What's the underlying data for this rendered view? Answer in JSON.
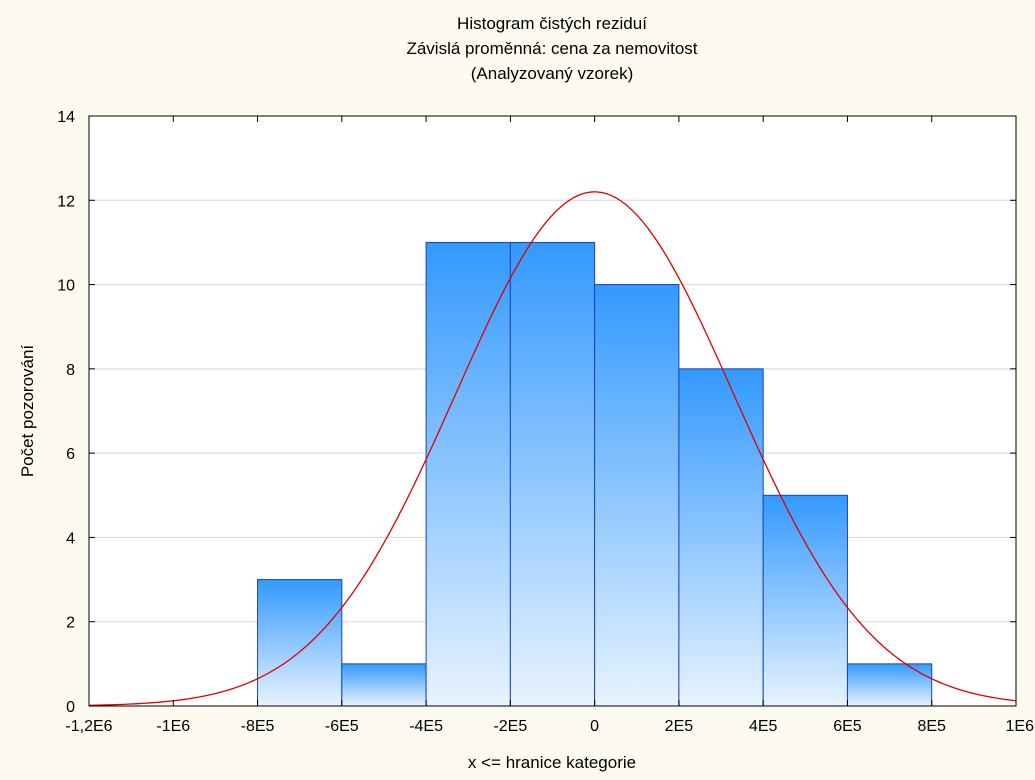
{
  "chart_data": {
    "type": "bar",
    "title_lines": [
      "Histogram čistých reziduí",
      "Závislá proměnná: cena za nemovitost",
      "(Analyzovaný vzorek)"
    ],
    "xlabel": "x <= hranice kategorie",
    "ylabel": "Počet pozorování",
    "xlim": [
      -1200000,
      1000000
    ],
    "ylim": [
      0,
      14
    ],
    "x_ticks": [
      {
        "value": -1200000,
        "label": "-1,2E6"
      },
      {
        "value": -1000000,
        "label": "-1E6"
      },
      {
        "value": -800000,
        "label": "-8E5"
      },
      {
        "value": -600000,
        "label": "-6E5"
      },
      {
        "value": -400000,
        "label": "-4E5"
      },
      {
        "value": -200000,
        "label": "-2E5"
      },
      {
        "value": 0,
        "label": "0"
      },
      {
        "value": 200000,
        "label": "2E5"
      },
      {
        "value": 400000,
        "label": "4E5"
      },
      {
        "value": 600000,
        "label": "6E5"
      },
      {
        "value": 800000,
        "label": "8E5"
      },
      {
        "value": 1000000,
        "label": "1E6"
      }
    ],
    "y_ticks": [
      {
        "value": 0,
        "label": "0"
      },
      {
        "value": 2,
        "label": "2"
      },
      {
        "value": 4,
        "label": "4"
      },
      {
        "value": 6,
        "label": "6"
      },
      {
        "value": 8,
        "label": "8"
      },
      {
        "value": 10,
        "label": "10"
      },
      {
        "value": 12,
        "label": "12"
      },
      {
        "value": 14,
        "label": "14"
      }
    ],
    "bins": [
      {
        "from": -800000,
        "to": -600000,
        "count": 3
      },
      {
        "from": -600000,
        "to": -400000,
        "count": 1
      },
      {
        "from": -400000,
        "to": -200000,
        "count": 11
      },
      {
        "from": -200000,
        "to": 0,
        "count": 11
      },
      {
        "from": 0,
        "to": 200000,
        "count": 10
      },
      {
        "from": 200000,
        "to": 400000,
        "count": 8
      },
      {
        "from": 400000,
        "to": 600000,
        "count": 5
      },
      {
        "from": 600000,
        "to": 800000,
        "count": 1
      }
    ],
    "normal_curve": {
      "mean": 0,
      "peak": 12.2,
      "sd": 330000,
      "color": "#e00000"
    },
    "grid": true,
    "colors": {
      "bar_top": "#3399ff",
      "bar_bottom": "#e8f3ff",
      "bar_edge": "#1a44b8",
      "background": "#fdfbf0",
      "plot_bg": "#ffffff"
    }
  }
}
